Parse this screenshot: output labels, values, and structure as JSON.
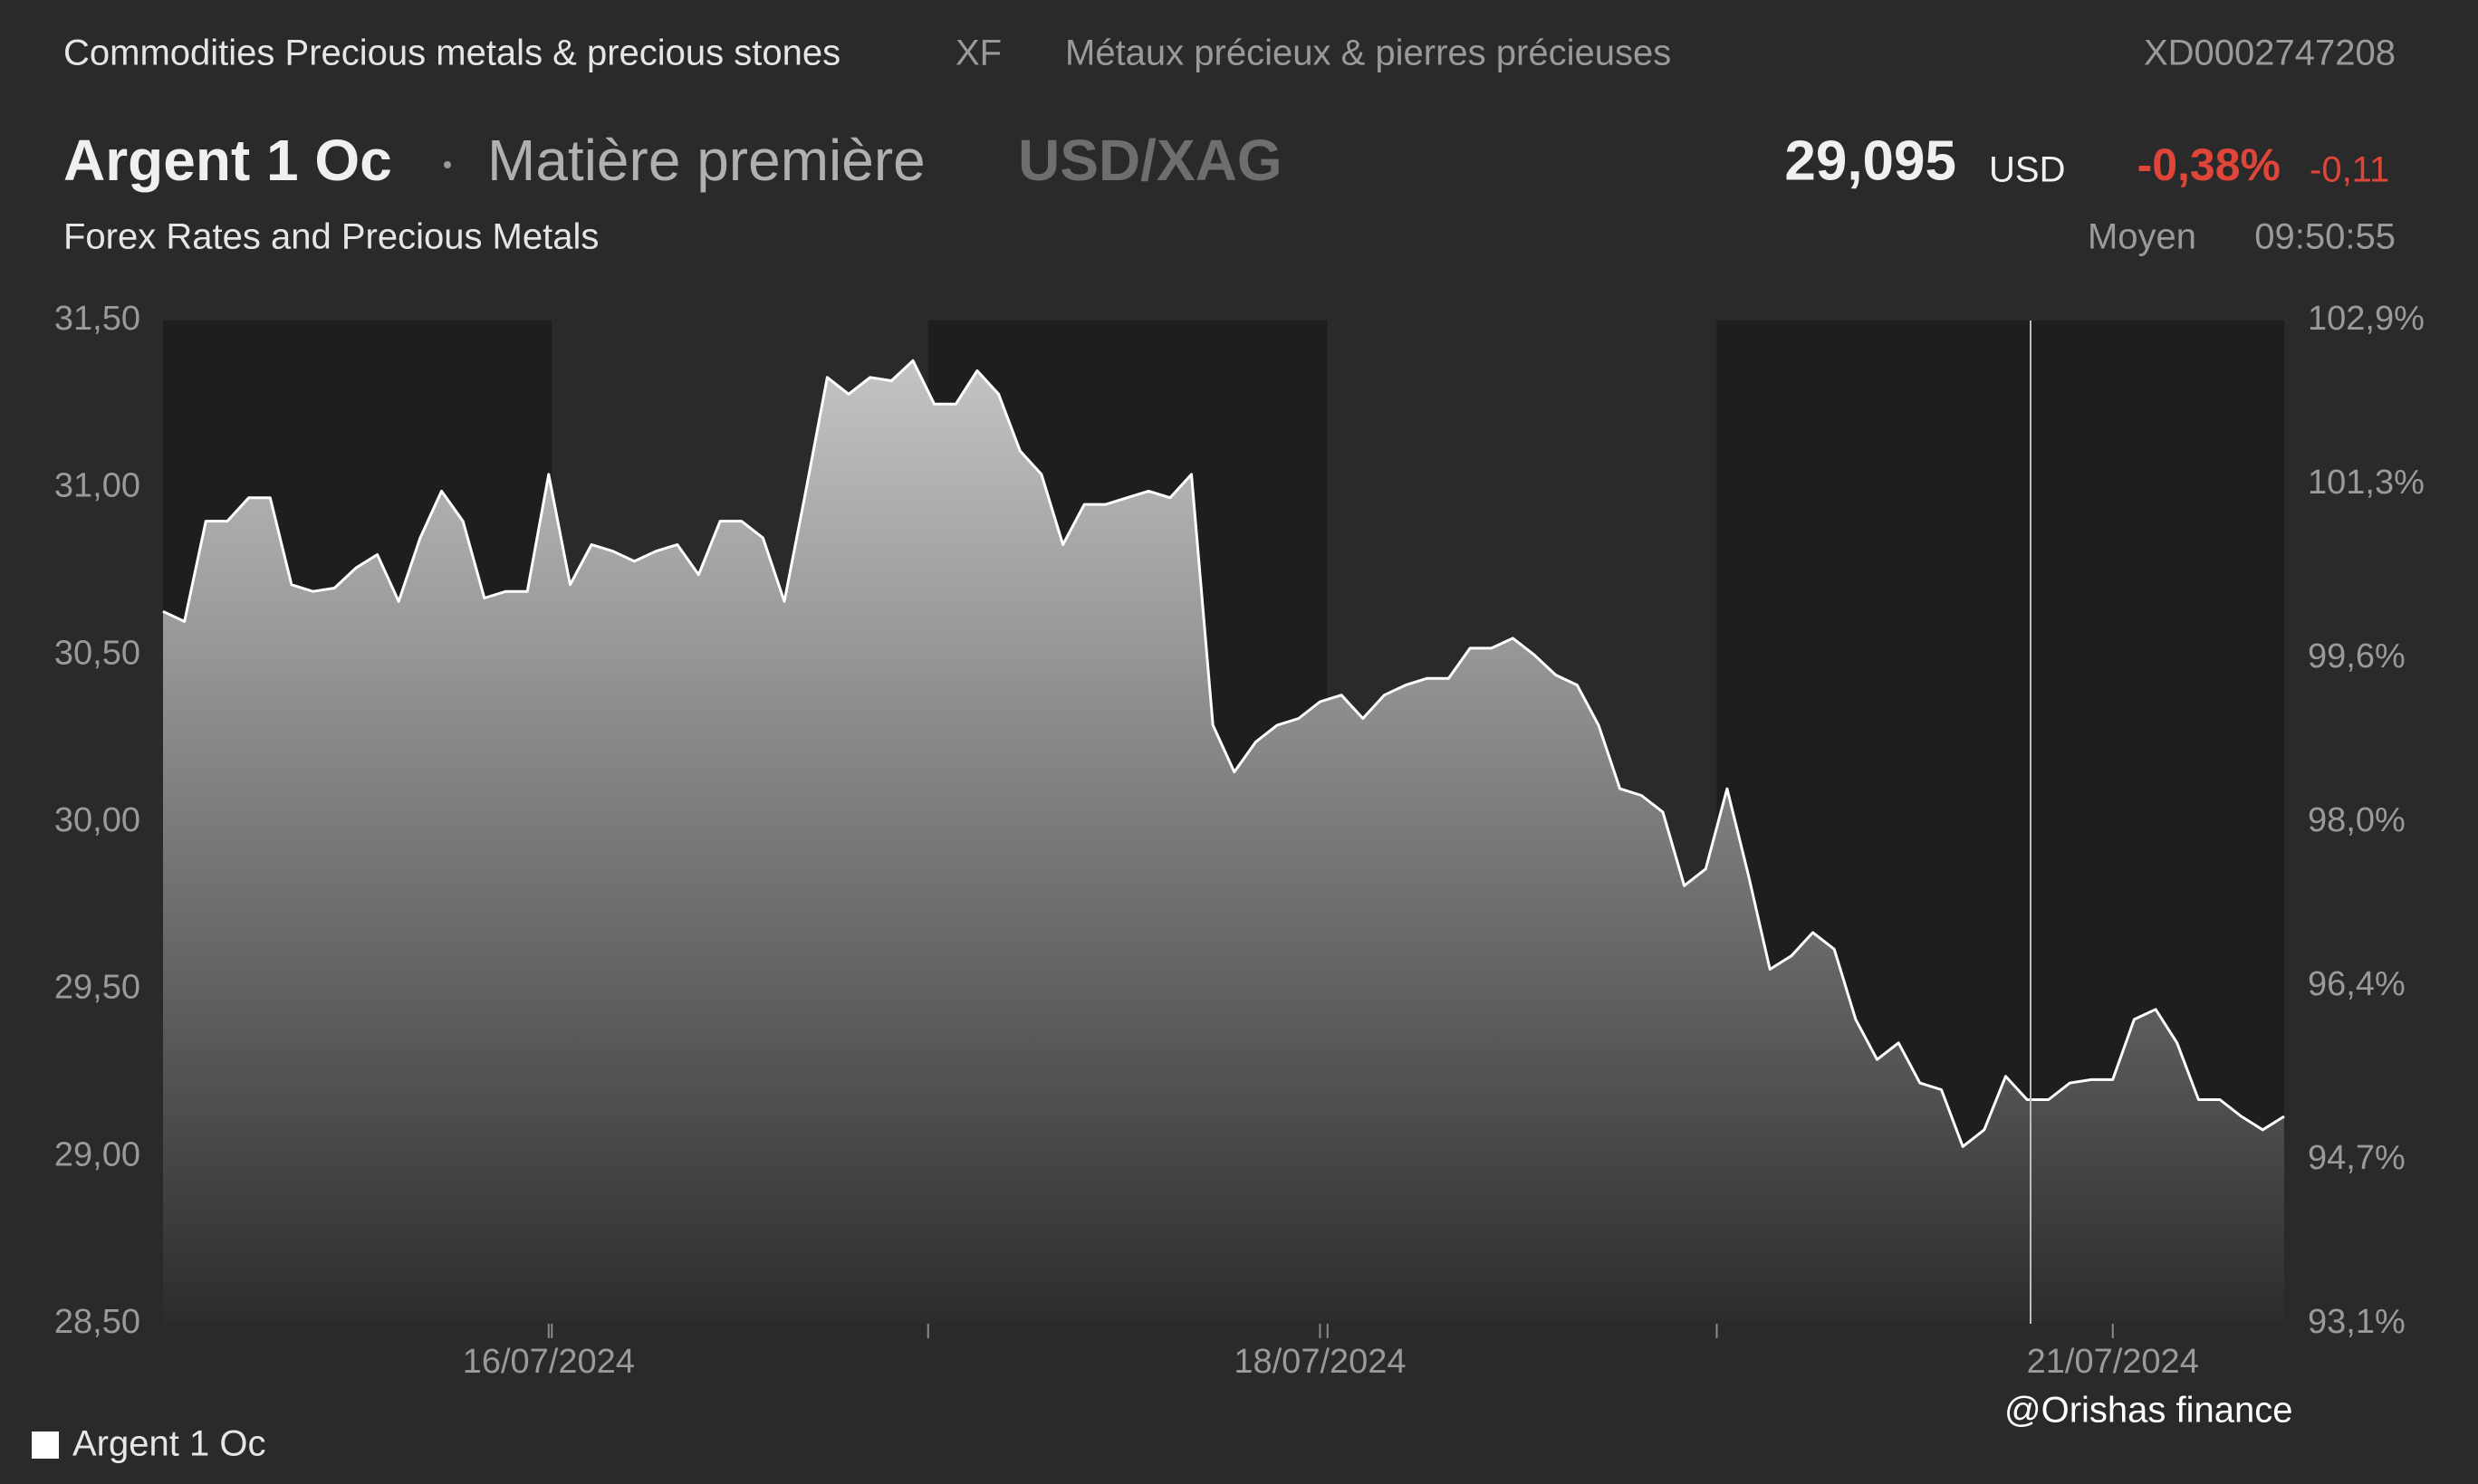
{
  "header": {
    "breadcrumb": "Commodities Precious metals & precious stones",
    "exchange": "XF",
    "category_fr": "Métaux précieux & pierres précieuses",
    "isin": "XD0002747208",
    "title": "Argent 1 Oc",
    "kind": "Matière première",
    "pair": "USD/XAG",
    "subtitle": "Forex Rates and Precious Metals",
    "price": "29,095",
    "currency": "USD",
    "change_pct": "-0,38%",
    "change_abs": "-0,11",
    "price_type": "Moyen",
    "time": "09:50:55"
  },
  "watermark": "@Orishas finance",
  "chart_data": {
    "type": "area",
    "categories": [
      null,
      null,
      null,
      null,
      null,
      null,
      null,
      null,
      null,
      null,
      null,
      null,
      null,
      null,
      null,
      null,
      null,
      null,
      "16/07/2024",
      null,
      null,
      null,
      null,
      null,
      null,
      null,
      null,
      null,
      null,
      null,
      null,
      null,
      null,
      null,
      null,
      null,
      null,
      null,
      null,
      null,
      null,
      null,
      null,
      null,
      null,
      null,
      null,
      null,
      null,
      null,
      null,
      null,
      null,
      null,
      "18/07/2024",
      null,
      null,
      null,
      null,
      null,
      null,
      null,
      null,
      null,
      null,
      null,
      null,
      null,
      null,
      null,
      null,
      null,
      null,
      null,
      null,
      null,
      null,
      null,
      null,
      null,
      null,
      null,
      null,
      null,
      null,
      null,
      null,
      null,
      null,
      null,
      null,
      "21/07/2024",
      null,
      null,
      null,
      null,
      null,
      null,
      null,
      null
    ],
    "series": [
      {
        "name": "Argent 1 Oc",
        "color": "#ffffff",
        "values": [
          30.63,
          30.6,
          30.9,
          30.9,
          30.97,
          30.97,
          30.71,
          30.69,
          30.7,
          30.76,
          30.8,
          30.66,
          30.85,
          30.99,
          30.9,
          30.67,
          30.69,
          30.69,
          31.04,
          30.71,
          30.83,
          30.81,
          30.78,
          30.81,
          30.83,
          30.74,
          30.9,
          30.9,
          30.85,
          30.66,
          30.99,
          31.33,
          31.28,
          31.33,
          31.32,
          31.38,
          31.25,
          31.25,
          31.35,
          31.28,
          31.11,
          31.04,
          30.83,
          30.95,
          30.95,
          30.97,
          30.99,
          30.97,
          31.04,
          30.29,
          30.15,
          30.24,
          30.29,
          30.31,
          30.36,
          30.38,
          30.31,
          30.38,
          30.41,
          30.43,
          30.43,
          30.52,
          30.52,
          30.55,
          30.5,
          30.44,
          30.41,
          30.29,
          30.1,
          30.08,
          30.03,
          29.81,
          29.86,
          30.1,
          29.84,
          29.56,
          29.6,
          29.67,
          29.62,
          29.41,
          29.29,
          29.34,
          29.22,
          29.2,
          29.03,
          29.08,
          29.24,
          29.17,
          29.17,
          29.22,
          29.23,
          29.23,
          29.41,
          29.44,
          29.34,
          29.17,
          29.17,
          29.12,
          29.08,
          29.12
        ]
      }
    ],
    "ylim": [
      28.5,
      31.5
    ],
    "yticks": [
      {
        "value": 28.5,
        "label": "28,50"
      },
      {
        "value": 29,
        "label": "29,00"
      },
      {
        "value": 29.5,
        "label": "29,50"
      },
      {
        "value": 30,
        "label": "30,00"
      },
      {
        "value": 30.5,
        "label": "30,50"
      },
      {
        "value": 31,
        "label": "31,00"
      },
      {
        "value": 31.5,
        "label": "31,50"
      }
    ],
    "y2lim": [
      93.1,
      102.9
    ],
    "y2ticks": [
      {
        "value": 93.1,
        "label": "93,1%"
      },
      {
        "value": 94.7,
        "label": "94,7%"
      },
      {
        "value": 96.4,
        "label": "96,4%"
      },
      {
        "value": 98.0,
        "label": "98,0%"
      },
      {
        "value": 99.6,
        "label": "99,6%"
      },
      {
        "value": 101.3,
        "label": "101,3%"
      },
      {
        "value": 102.9,
        "label": "102,9%"
      }
    ]
  }
}
